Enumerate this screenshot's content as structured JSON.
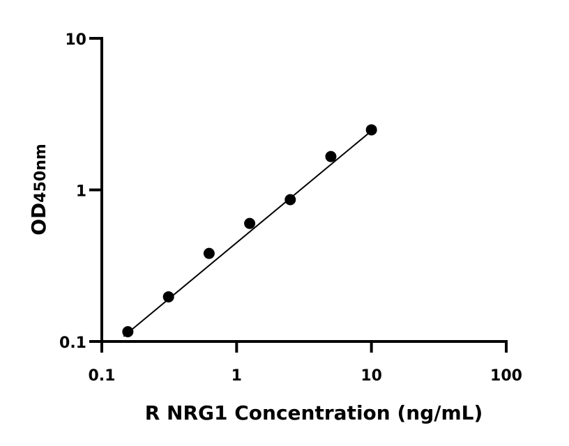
{
  "chart_data": {
    "type": "scatter",
    "title": "",
    "xlabel": "R NRG1 Concentration (ng/mL)",
    "ylabel_main": "OD",
    "ylabel_sub": "450nm",
    "x_scale": "log",
    "y_scale": "log",
    "xlim": [
      0.1,
      100
    ],
    "ylim": [
      0.1,
      10
    ],
    "x_ticks": [
      0.1,
      1,
      10,
      100
    ],
    "x_tick_labels": [
      "0.1",
      "1",
      "10",
      "100"
    ],
    "y_ticks": [
      0.1,
      1,
      10
    ],
    "y_tick_labels": [
      "0.1",
      "1",
      "10"
    ],
    "grid": false,
    "marker_color": "#000000",
    "points": {
      "x": [
        0.156,
        0.3125,
        0.625,
        1.25,
        2.5,
        5,
        10
      ],
      "y": [
        0.116,
        0.197,
        0.381,
        0.601,
        0.862,
        1.66,
        2.49
      ]
    },
    "fit_line": {
      "x": [
        0.145,
        10
      ],
      "y": [
        0.108,
        2.45
      ]
    }
  }
}
